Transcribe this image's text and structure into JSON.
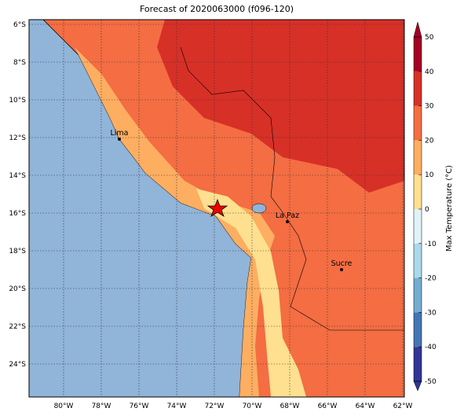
{
  "title": "Forecast of 2020063000 (f096-120)",
  "x_axis": {
    "ticks": [
      "80°W",
      "78°W",
      "76°W",
      "74°W",
      "72°W",
      "70°W",
      "68°W",
      "66°W",
      "64°W",
      "62°W"
    ]
  },
  "y_axis": {
    "ticks": [
      "6°S",
      "8°S",
      "10°S",
      "12°S",
      "14°S",
      "16°S",
      "18°S",
      "20°S",
      "22°S",
      "24°S"
    ]
  },
  "cities": [
    {
      "label": "Lima"
    },
    {
      "label": "La Paz"
    },
    {
      "label": "Sucre"
    }
  ],
  "colorbar": {
    "label": "Max Temperature (°C)",
    "ticks": [
      -50,
      -40,
      -30,
      -20,
      -10,
      0,
      10,
      20,
      30,
      40,
      50
    ],
    "colors": [
      "#313695",
      "#4575b4",
      "#74add1",
      "#abd9e9",
      "#e0f3f8",
      "#fee090",
      "#fdae61",
      "#f46d43",
      "#d73027",
      "#a50026"
    ]
  }
}
